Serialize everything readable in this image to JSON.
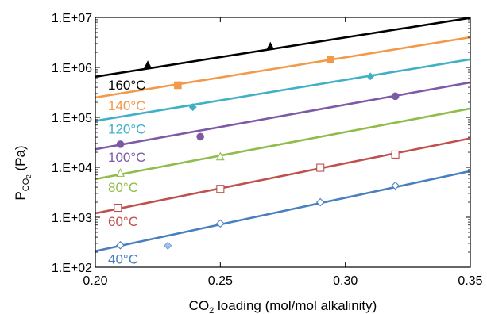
{
  "chart_data": {
    "type": "scatter",
    "title": "",
    "xlabel": {
      "pre": "CO",
      "sub": "2",
      "post": " loading (mol/mol alkalinity)"
    },
    "ylabel": {
      "pre": "P",
      "sub": "CO",
      "subsub": "2",
      "post": " (Pa)"
    },
    "xlim": [
      0.2,
      0.35
    ],
    "ylim": [
      100,
      10000000
    ],
    "y_scale": "log",
    "x_ticks": [
      "0.20",
      "0.25",
      "0.30",
      "0.35"
    ],
    "x_tick_values": [
      0.2,
      0.25,
      0.3,
      0.35
    ],
    "y_ticks": [
      "1.E+02",
      "1.E+03",
      "1.E+04",
      "1.E+05",
      "1.E+06",
      "1.E+07"
    ],
    "y_tick_values": [
      100,
      1000,
      10000,
      100000,
      1000000,
      10000000
    ],
    "grid": false,
    "series": [
      {
        "name": "160°C",
        "color": "#000000",
        "marker": "triangle-filled",
        "line": {
          "x": [
            0.2,
            0.35
          ],
          "y": [
            650000,
            9800000
          ]
        },
        "points": [
          {
            "x": 0.221,
            "y": 1100000
          },
          {
            "x": 0.27,
            "y": 2600000
          }
        ]
      },
      {
        "name": "140°C",
        "color": "#f2994a",
        "marker": "square-filled",
        "line": {
          "x": [
            0.2,
            0.35
          ],
          "y": [
            250000,
            4000000
          ]
        },
        "points": [
          {
            "x": 0.233,
            "y": 440000
          },
          {
            "x": 0.294,
            "y": 1450000
          }
        ]
      },
      {
        "name": "120°C",
        "color": "#3fb0c6",
        "marker": "diamond-filled",
        "line": {
          "x": [
            0.2,
            0.35
          ],
          "y": [
            85000,
            1450000
          ]
        },
        "points": [
          {
            "x": 0.239,
            "y": 160000
          },
          {
            "x": 0.31,
            "y": 660000
          }
        ]
      },
      {
        "name": "100°C",
        "color": "#7d5aa6",
        "marker": "circle-filled",
        "line": {
          "x": [
            0.2,
            0.35
          ],
          "y": [
            23000,
            500000
          ]
        },
        "points": [
          {
            "x": 0.21,
            "y": 29000
          },
          {
            "x": 0.242,
            "y": 41000
          },
          {
            "x": 0.32,
            "y": 265000
          }
        ]
      },
      {
        "name": "80°C",
        "color": "#8fbc4a",
        "marker": "triangle-open",
        "line": {
          "x": [
            0.2,
            0.35
          ],
          "y": [
            5800,
            150000
          ]
        },
        "points": [
          {
            "x": 0.21,
            "y": 7500
          },
          {
            "x": 0.25,
            "y": 16000
          }
        ]
      },
      {
        "name": "60°C",
        "color": "#c0504d",
        "marker": "square-open",
        "line": {
          "x": [
            0.2,
            0.35
          ],
          "y": [
            1200,
            38000
          ]
        },
        "points": [
          {
            "x": 0.209,
            "y": 1550
          },
          {
            "x": 0.25,
            "y": 3700
          },
          {
            "x": 0.29,
            "y": 9800
          },
          {
            "x": 0.32,
            "y": 18000
          }
        ]
      },
      {
        "name": "40°C",
        "color": "#4a7fbf",
        "marker": "diamond-open",
        "line": {
          "x": [
            0.2,
            0.35
          ],
          "y": [
            210,
            8400
          ]
        },
        "points": [
          {
            "x": 0.21,
            "y": 275
          },
          {
            "x": 0.229,
            "y": 270,
            "filled": true
          },
          {
            "x": 0.25,
            "y": 750
          },
          {
            "x": 0.29,
            "y": 2000
          },
          {
            "x": 0.32,
            "y": 4300
          }
        ]
      }
    ]
  }
}
